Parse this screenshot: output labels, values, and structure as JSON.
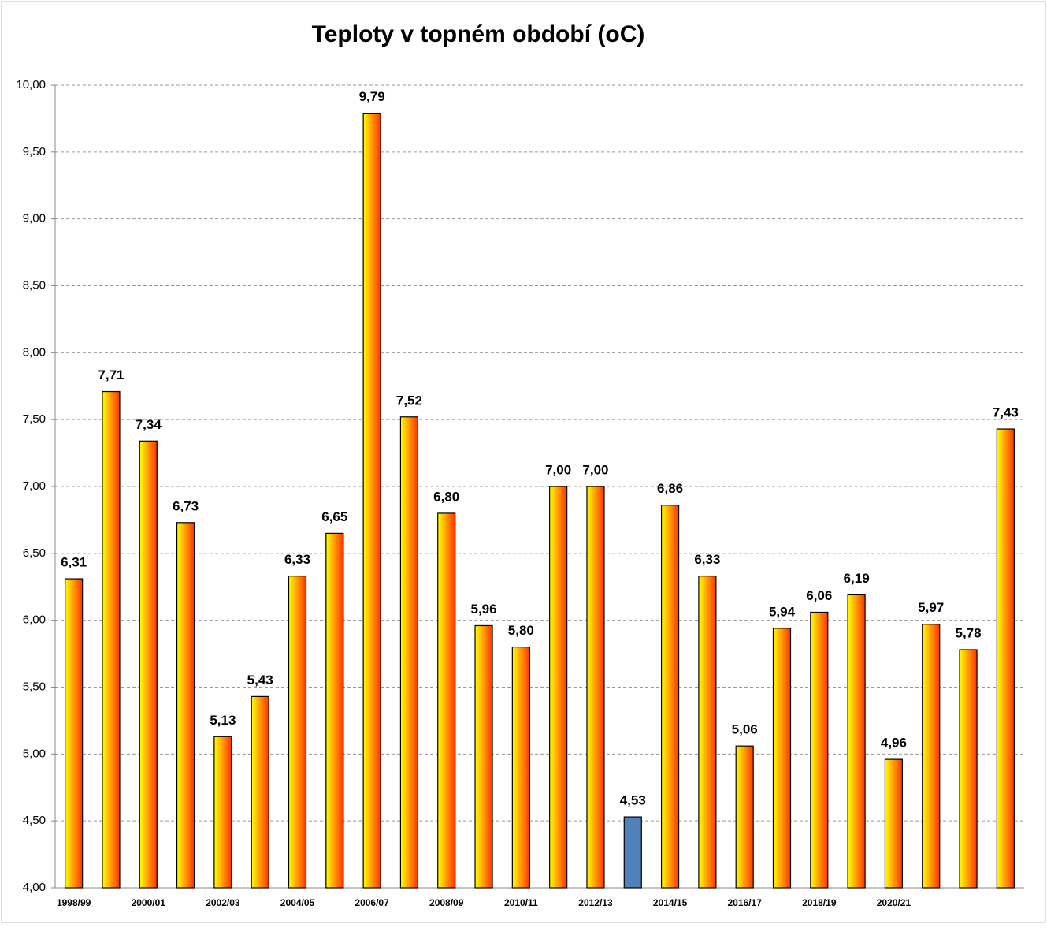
{
  "chart_data": {
    "type": "bar",
    "title": "Teploty v topném období (oC)",
    "categories": [
      "1998/99",
      null,
      "2000/01",
      null,
      "2002/03",
      null,
      "2004/05",
      null,
      "2006/07",
      null,
      "2008/09",
      null,
      "2010/11",
      null,
      "2012/13",
      null,
      "2014/15",
      null,
      "2016/17",
      null,
      "2018/19",
      null,
      "2020/21",
      null,
      null,
      null
    ],
    "values": [
      6.31,
      7.71,
      7.34,
      6.73,
      5.13,
      5.43,
      6.33,
      6.65,
      9.79,
      7.52,
      6.8,
      5.96,
      5.8,
      7.0,
      7.0,
      4.53,
      6.86,
      6.33,
      5.06,
      5.94,
      6.06,
      6.19,
      4.96,
      5.97,
      5.78,
      7.43
    ],
    "value_labels": [
      "6,31",
      "7,71",
      "7,34",
      "6,73",
      "5,13",
      "5,43",
      "6,33",
      "6,65",
      "9,79",
      "7,52",
      "6,80",
      "5,96",
      "5,80",
      "7,00",
      "7,00",
      "4,53",
      "6,86",
      "6,33",
      "5,06",
      "5,94",
      "6,06",
      "6,19",
      "4,96",
      "5,97",
      "5,78",
      "7,43"
    ],
    "colors": [
      [
        "#ffff00",
        "#ff3300"
      ],
      [
        "#ffff00",
        "#ff3300"
      ],
      [
        "#ffff00",
        "#ff3300"
      ],
      [
        "#ffff00",
        "#ff3300"
      ],
      [
        "#ffff00",
        "#ff3300"
      ],
      [
        "#ffff00",
        "#ff3300"
      ],
      [
        "#ffff00",
        "#ff3300"
      ],
      [
        "#ffff00",
        "#ff3300"
      ],
      [
        "#ffff00",
        "#ff3300"
      ],
      [
        "#ffff00",
        "#ff3300"
      ],
      [
        "#ffff00",
        "#ff3300"
      ],
      [
        "#ffff00",
        "#ff3300"
      ],
      [
        "#ffff00",
        "#ff3300"
      ],
      [
        "#ffff00",
        "#ff3300"
      ],
      [
        "#ffff00",
        "#ff3300"
      ],
      "#4f81bd",
      [
        "#ffff00",
        "#ff3300"
      ],
      [
        "#ffff00",
        "#ff3300"
      ],
      [
        "#ffff00",
        "#ff3300"
      ],
      [
        "#ffff00",
        "#ff3300"
      ],
      [
        "#ffff00",
        "#ff3300"
      ],
      [
        "#ffff00",
        "#ff3300"
      ],
      [
        "#ffff00",
        "#ff3300"
      ],
      [
        "#ffff00",
        "#ff3300"
      ],
      [
        "#ffff00",
        "#ff3300"
      ],
      [
        "#ffff00",
        "#ff3300"
      ]
    ],
    "ylim": [
      4,
      10
    ],
    "yticks": [
      {
        "value": 4,
        "label": "4,00"
      },
      {
        "value": 4.5,
        "label": "4,50"
      },
      {
        "value": 5,
        "label": "5,00"
      },
      {
        "value": 5.5,
        "label": "5,50"
      },
      {
        "value": 6,
        "label": "6,00"
      },
      {
        "value": 6.5,
        "label": "6,50"
      },
      {
        "value": 7,
        "label": "7,00"
      },
      {
        "value": 7.5,
        "label": "7,50"
      },
      {
        "value": 8,
        "label": "8,00"
      },
      {
        "value": 8.5,
        "label": "8,50"
      },
      {
        "value": 9,
        "label": "9,00"
      },
      {
        "value": 9.5,
        "label": "9,50"
      },
      {
        "value": 10,
        "label": "10,00"
      }
    ],
    "grid": true
  }
}
